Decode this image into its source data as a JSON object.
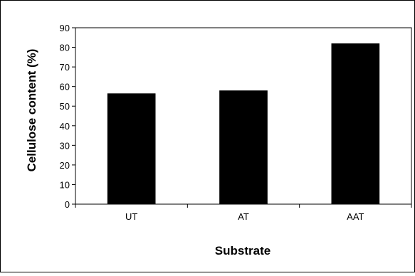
{
  "chart_data": {
    "type": "bar",
    "categories": [
      "UT",
      "AT",
      "AAT"
    ],
    "values": [
      56.5,
      58.0,
      82.0
    ],
    "xlabel": "Substrate",
    "ylabel": "Cellulose content (%)",
    "ylim": [
      0,
      90
    ],
    "yticks": [
      0,
      10,
      20,
      30,
      40,
      50,
      60,
      70,
      80,
      90
    ],
    "grid": false,
    "colors": {
      "bar": "#000000",
      "axis": "#000000",
      "background": "#ffffff"
    }
  }
}
